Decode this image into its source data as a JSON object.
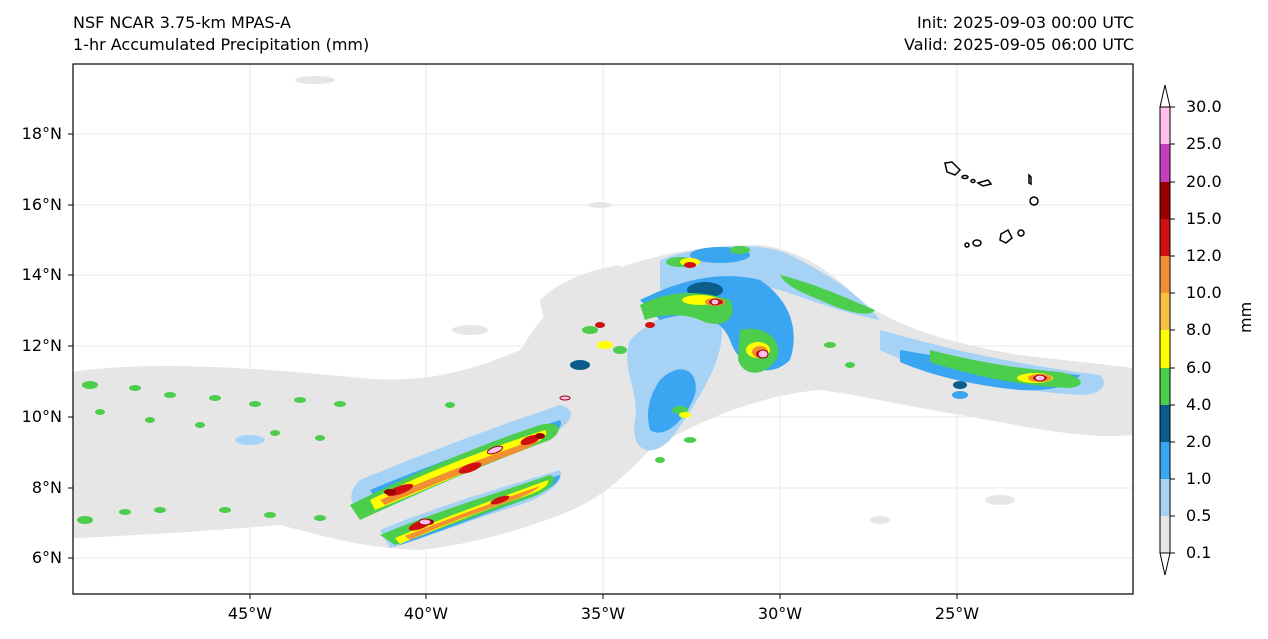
{
  "header": {
    "model": "NSF NCAR 3.75-km MPAS-A",
    "field": "1-hr Accumulated Precipitation (mm)",
    "init": "Init: 2025-09-03 00:00 UTC",
    "valid": "Valid: 2025-09-05 06:00 UTC"
  },
  "map": {
    "lon_range": [
      -50,
      -20
    ],
    "lat_range": [
      5,
      20
    ],
    "lat_ticks": [
      "6°N",
      "8°N",
      "10°N",
      "12°N",
      "14°N",
      "16°N",
      "18°N"
    ],
    "lon_ticks": [
      "45°W",
      "40°W",
      "35°W",
      "30°W",
      "25°W"
    ],
    "islands": "Cape Verde Islands outline near 15–17°N, 22–25°W"
  },
  "colorbar": {
    "units": "mm",
    "levels": [
      "0.1",
      "0.5",
      "1.0",
      "2.0",
      "4.0",
      "6.0",
      "8.0",
      "10.0",
      "12.0",
      "15.0",
      "20.0",
      "25.0",
      "30.0"
    ],
    "colors": [
      "#e6e6e6",
      "#a6d3f5",
      "#3aa5f0",
      "#0a5c8a",
      "#4ccd4c",
      "#ffff00",
      "#f8c040",
      "#f09030",
      "#d01010",
      "#980000",
      "#c040c0",
      "#ffc0f0"
    ]
  }
}
